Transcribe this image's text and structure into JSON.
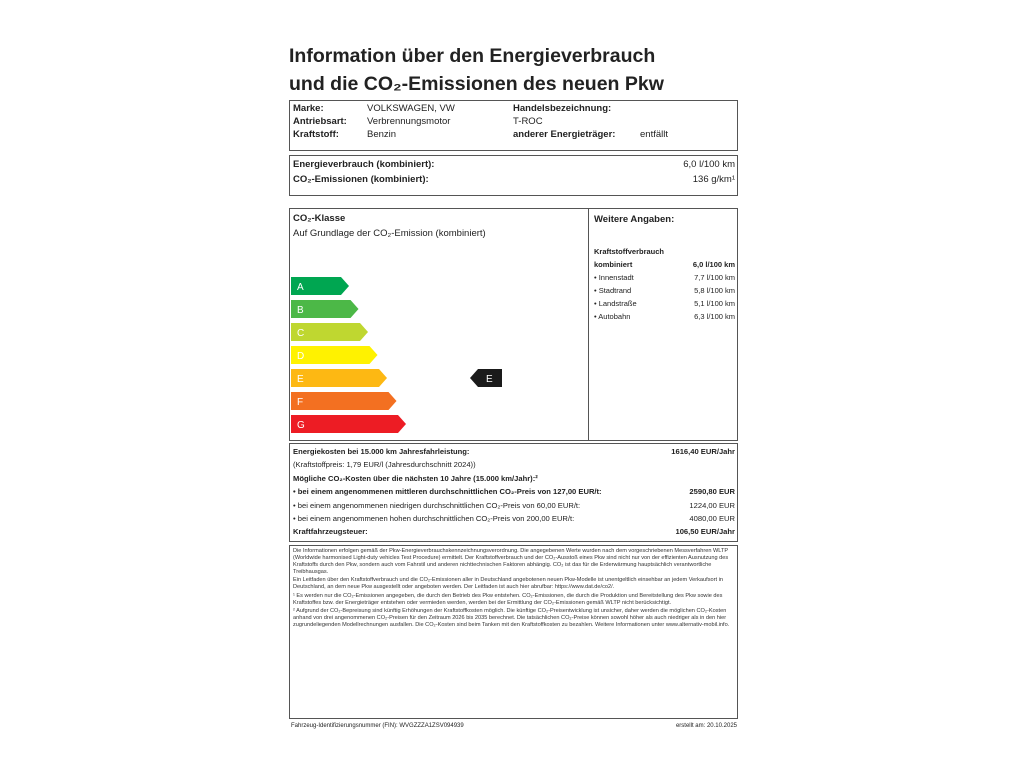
{
  "title": [
    "Information über den Energieverbrauch",
    "und die CO₂-Emissionen des neuen Pkw"
  ],
  "vehicle": {
    "rows": [
      {
        "label": "Marke:",
        "value": "VOLKSWAGEN, VW"
      },
      {
        "label": "Antriebsart:",
        "value": "Verbrennungsmotor"
      },
      {
        "label": "Kraftstoff:",
        "value": "Benzin"
      }
    ],
    "trade_name_label": "Handelsbezeichnung:",
    "trade_name": "T-ROC",
    "other_energy_label": "anderer Energieträger:",
    "other_energy": "entfällt"
  },
  "consumption": [
    {
      "label": "Energieverbrauch (kombiniert):",
      "value": "6,0 l/100 km"
    },
    {
      "label": "CO₂-Emissionen (kombiniert):",
      "value": "136 g/km¹"
    }
  ],
  "co2_class": {
    "title": "CO₂-Klasse",
    "subtitle": "Auf Grundlage der CO₂-Emission (kombiniert)",
    "classes": [
      {
        "label": "A",
        "color": "#00a651"
      },
      {
        "label": "B",
        "color": "#4cb847"
      },
      {
        "label": "C",
        "color": "#bfd730"
      },
      {
        "label": "D",
        "color": "#fff200"
      },
      {
        "label": "E",
        "color": "#fdb813"
      },
      {
        "label": "F",
        "color": "#f37021"
      },
      {
        "label": "G",
        "color": "#ed1c24"
      }
    ],
    "rating": "E"
  },
  "further": {
    "title": "Weitere Angaben:",
    "subtitle": "Kraftstoffverbrauch",
    "rows": [
      {
        "label": "kombiniert",
        "value": "6,0 l/100 km",
        "bold": true
      },
      {
        "label": "• Innenstadt",
        "value": "7,7 l/100 km"
      },
      {
        "label": "• Stadtrand",
        "value": "5,8 l/100 km"
      },
      {
        "label": "• Landstraße",
        "value": "5,1 l/100 km"
      },
      {
        "label": "• Autobahn",
        "value": "6,3 l/100 km"
      }
    ]
  },
  "costs": [
    {
      "label": "Energiekosten bei 15.000 km Jahresfahrleistung:",
      "value": "1616,40 EUR/Jahr",
      "bold": true
    },
    {
      "label": "(Kraftstoffpreis: 1,79 EUR/l (Jahresdurchschnitt 2024))"
    },
    {
      "label": "Mögliche CO₂-Kosten über die nächsten 10 Jahre (15.000 km/Jahr):²",
      "bold": true
    },
    {
      "label": "• bei einem angenommenen mittleren durchschnittlichen CO₂-Preis von 127,00 EUR/t:",
      "value": "2590,80 EUR",
      "bold": true
    },
    {
      "label": "• bei einem angenommenen niedrigen durchschnittlichen CO₂-Preis von 60,00 EUR/t:",
      "value": "1224,00 EUR"
    },
    {
      "label": "• bei einem angenommenen hohen durchschnittlichen CO₂-Preis von 200,00 EUR/t:",
      "value": "4080,00 EUR"
    },
    {
      "label": "Kraftfahrzeugsteuer:",
      "value": "106,50 EUR/Jahr",
      "bold": true
    }
  ],
  "fine_print": [
    "Die Informationen erfolgen gemäß der Pkw-Energieverbrauchskennzeichnungsverordnung. Die angegebenen Werte wurden nach dem vorgeschriebenen Messverfahren WLTP (Worldwide harmonised Light-duty vehicles Test Procedure) ermittelt. Der Kraftstoffverbrauch und der CO₂-Ausstoß eines Pkw sind nicht nur von der effizienten Ausnutzung des Kraftstoffs durch den Pkw, sondern auch vom Fahrstil und anderen nichttechnischen Faktoren abhängig. CO₂ ist das für die Erderwärmung hauptsächlich verantwortliche Treibhausgas.",
    "Ein Leitfaden über den Kraftstoffverbrauch und die CO₂-Emissionen aller in Deutschland angebotenen neuen Pkw-Modelle ist unentgeltlich einsehbar an jedem Verkaufsort in Deutschland, an dem neue Pkw ausgestellt oder angeboten werden. Der Leitfaden ist auch hier abrufbar: https://www.dat.de/co2/.",
    "¹ Es werden nur die CO₂-Emissionen angegeben, die durch den Betrieb des Pkw entstehen. CO₂-Emissionen, die durch die Produktion und Bereitstellung des Pkw sowie des Kraftstoffes bzw. der Energieträger entstehen oder vermieden werden, werden bei der Ermittlung der CO₂-Emissionen gemäß WLTP nicht berücksichtigt.",
    "² Aufgrund der CO₂-Bepreisung sind künftig Erhöhungen der Kraftstoffkosten möglich. Die künftige CO₂-Preisentwicklung ist unsicher, daher werden die möglichen CO₂-Kosten anhand von drei angenommenen CO₂-Preisen für den Zeitraum 2026 bis 2035 berechnet. Die tatsächlichen CO₂-Preise können sowohl höher als auch niedriger als in den hier zugrundeliegenden Modellrechnungen ausfallen. Die CO₂-Kosten sind beim Tanken mit den Kraftstoffkosten zu bezahlen. Weitere Informationen unter www.alternativ-mobil.info."
  ],
  "footer": {
    "vin": "Fahrzeug-Identifizierungsnummer (FIN): WVGZZZA1ZSV094939",
    "date": "erstellt am: 20.10.2025"
  }
}
